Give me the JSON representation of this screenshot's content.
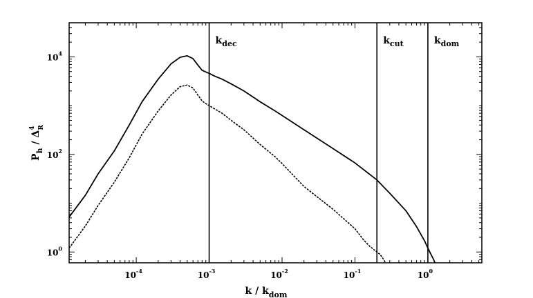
{
  "chart_data": {
    "type": "line",
    "x_scale": "log",
    "y_scale": "log",
    "xlim": [
      1.2e-05,
      5.5
    ],
    "ylim": [
      0.6,
      50000
    ],
    "grid": false,
    "xlabel": {
      "main": "k / k",
      "sub": "dom"
    },
    "ylabel": {
      "main": "P",
      "sub1": "h",
      "mid": " / Δ",
      "sup": "4",
      "sub2": "R"
    },
    "x_ticks": [
      {
        "value": 0.0001,
        "base": "10",
        "exp": "-4"
      },
      {
        "value": 0.001,
        "base": "10",
        "exp": "-3"
      },
      {
        "value": 0.01,
        "base": "10",
        "exp": "-2"
      },
      {
        "value": 0.1,
        "base": "10",
        "exp": "-1"
      },
      {
        "value": 1,
        "base": "10",
        "exp": "0"
      }
    ],
    "y_ticks": [
      {
        "value": 1,
        "base": "10",
        "exp": "0"
      },
      {
        "value": 100,
        "base": "10",
        "exp": "2"
      },
      {
        "value": 10000,
        "base": "10",
        "exp": "4"
      }
    ],
    "vertical_lines": [
      {
        "x": 0.001,
        "main": "k",
        "sub": "dec"
      },
      {
        "x": 0.2,
        "main": "k",
        "sub": "cut"
      },
      {
        "x": 1.0,
        "main": "k",
        "sub": "dom"
      }
    ],
    "series": [
      {
        "style": "solid",
        "x": [
          1.2e-05,
          2e-05,
          3e-05,
          5e-05,
          8e-05,
          0.00012,
          0.0002,
          0.0003,
          0.0004,
          0.0005,
          0.0006,
          0.0007,
          0.0008,
          0.0009,
          0.001,
          0.0012,
          0.0015,
          0.002,
          0.003,
          0.005,
          0.008,
          0.01,
          0.02,
          0.05,
          0.1,
          0.2,
          0.3,
          0.5,
          0.7,
          0.9,
          1.0,
          1.1,
          1.2,
          1.25
        ],
        "y": [
          5.2,
          14.5,
          40,
          118,
          400,
          1200,
          3500,
          7200,
          9800,
          10500,
          9200,
          6800,
          5300,
          4900,
          4600,
          4000,
          3500,
          2800,
          2000,
          1200,
          780,
          630,
          320,
          132,
          67,
          30,
          16,
          7,
          3.3,
          1.7,
          1.2,
          0.9,
          0.7,
          0.6
        ]
      },
      {
        "style": "dashed",
        "x": [
          1.2e-05,
          2e-05,
          3e-05,
          5e-05,
          8e-05,
          0.00012,
          0.0002,
          0.0003,
          0.0004,
          0.0005,
          0.0006,
          0.0007,
          0.0008,
          0.0009,
          0.001,
          0.0012,
          0.0015,
          0.002,
          0.003,
          0.005,
          0.008,
          0.01,
          0.02,
          0.05,
          0.1,
          0.13,
          0.16,
          0.2,
          0.22,
          0.24,
          0.255,
          0.26
        ],
        "y": [
          1.2,
          3.4,
          9,
          27,
          85,
          260,
          780,
          1650,
          2450,
          2650,
          2300,
          1650,
          1250,
          1100,
          1000,
          850,
          700,
          500,
          320,
          160,
          90,
          65,
          22,
          7.5,
          3,
          1.8,
          1.3,
          1.0,
          0.9,
          0.75,
          0.65,
          0.6
        ]
      }
    ]
  }
}
